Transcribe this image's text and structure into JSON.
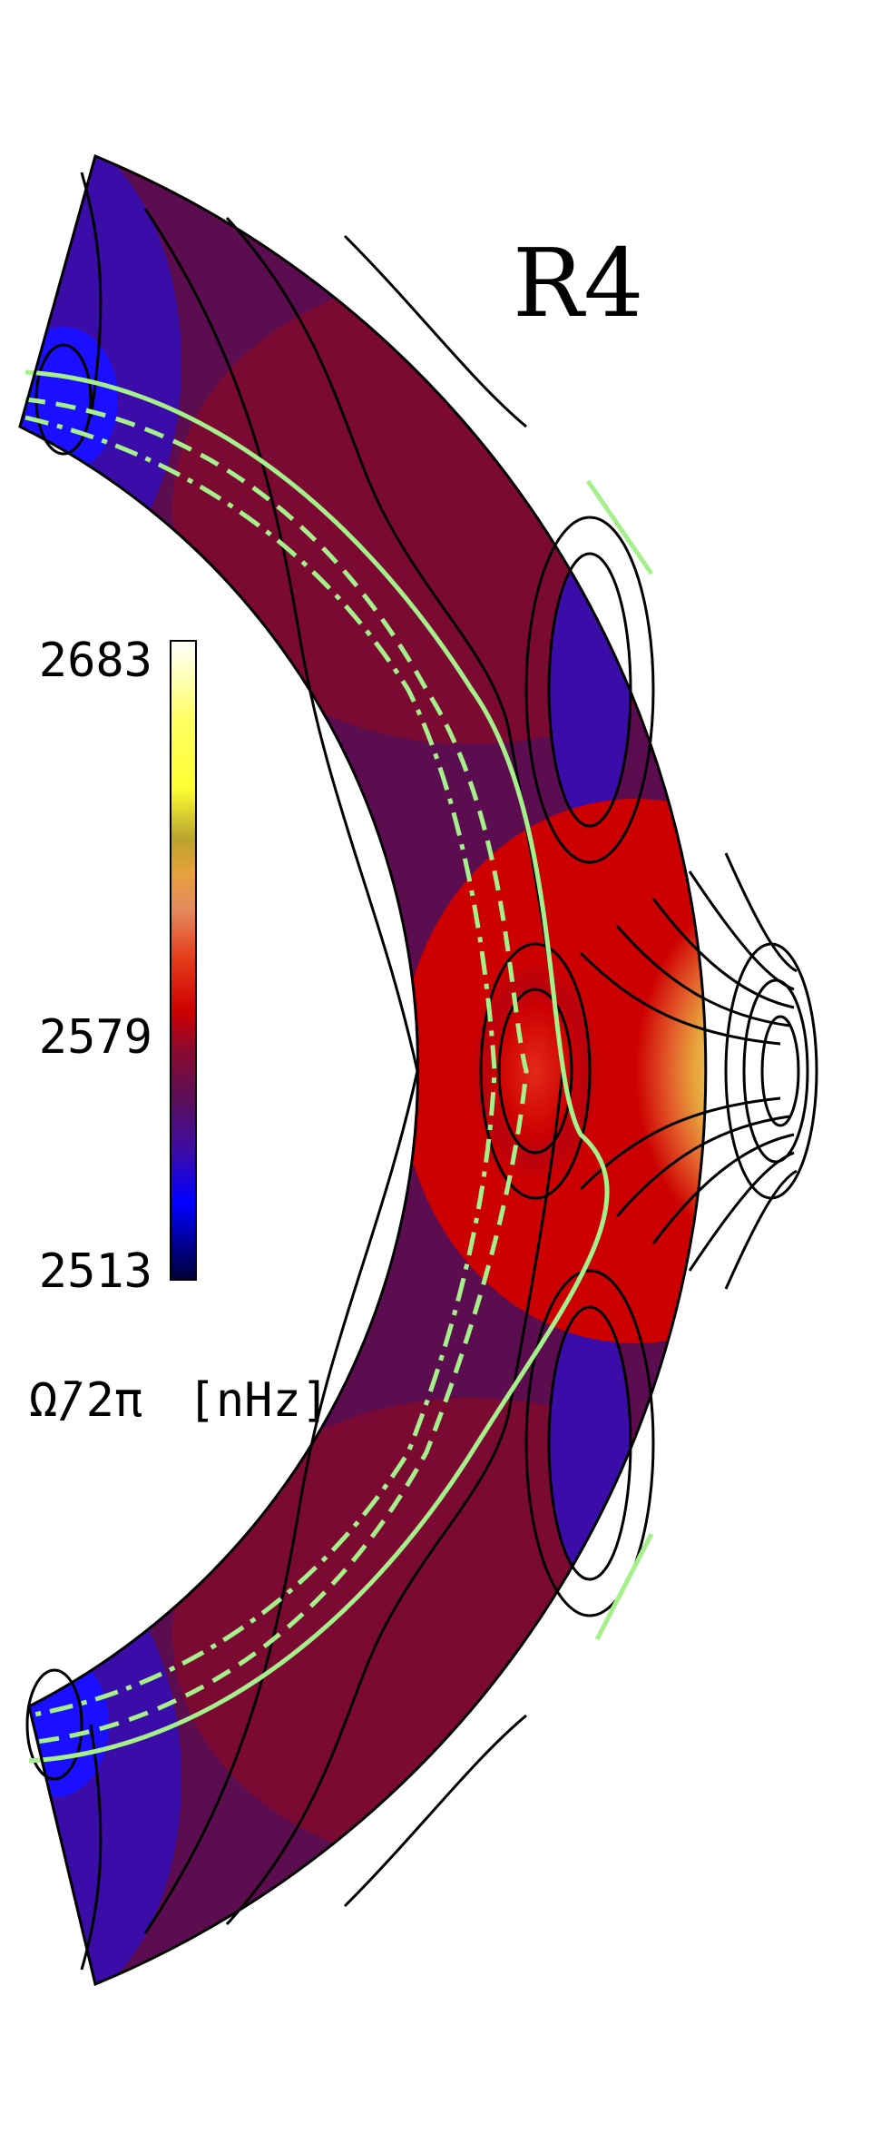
{
  "figure": {
    "label": "R4",
    "colorbar": {
      "max": "2683",
      "mid": "2579",
      "min": "2513",
      "units": "[nHz]",
      "quantity": "Ω̄/2π",
      "colors_top_to_bottom": [
        "#ffffff",
        "#ffff66",
        "#ffff33",
        "#b9a32c",
        "#e6a23a",
        "#e58a5e",
        "#e33a1a",
        "#cc0000",
        "#8a0a2e",
        "#5a0f5a",
        "#3b0ca8",
        "#0000ff",
        "#000033"
      ]
    },
    "contour_line_color": "#000000",
    "overlay_line_color": "#a6f08c"
  }
}
